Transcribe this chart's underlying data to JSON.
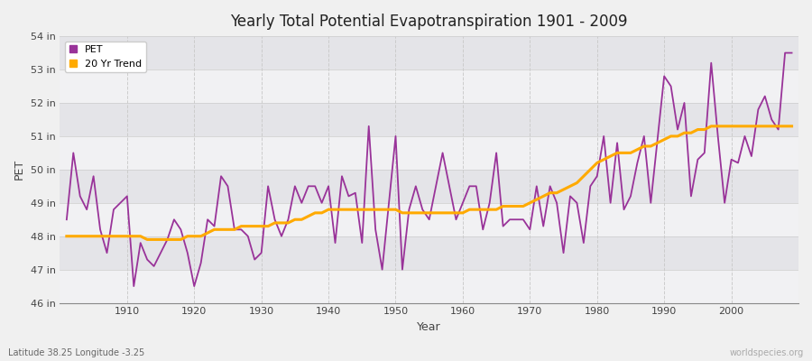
{
  "title": "Yearly Total Potential Evapotranspiration 1901 - 2009",
  "xlabel": "Year",
  "ylabel": "PET",
  "subtitle": "Latitude 38.25 Longitude -3.25",
  "watermark": "worldspecies.org",
  "pet_color": "#993399",
  "trend_color": "#ffaa00",
  "bg_color": "#f0f0f0",
  "plot_bg_color": "#e4e4e8",
  "ylim": [
    46,
    54
  ],
  "yticks": [
    46,
    47,
    48,
    49,
    50,
    51,
    52,
    53,
    54
  ],
  "ytick_labels": [
    "46 in",
    "47 in",
    "48 in",
    "49 in",
    "50 in",
    "51 in",
    "52 in",
    "53 in",
    "54 in"
  ],
  "years": [
    1901,
    1902,
    1903,
    1904,
    1905,
    1906,
    1907,
    1908,
    1909,
    1910,
    1911,
    1912,
    1913,
    1914,
    1915,
    1916,
    1917,
    1918,
    1919,
    1920,
    1921,
    1922,
    1923,
    1924,
    1925,
    1926,
    1927,
    1928,
    1929,
    1930,
    1931,
    1932,
    1933,
    1934,
    1935,
    1936,
    1937,
    1938,
    1939,
    1940,
    1941,
    1942,
    1943,
    1944,
    1945,
    1946,
    1947,
    1948,
    1949,
    1950,
    1951,
    1952,
    1953,
    1954,
    1955,
    1956,
    1957,
    1958,
    1959,
    1960,
    1961,
    1962,
    1963,
    1964,
    1965,
    1966,
    1967,
    1968,
    1969,
    1970,
    1971,
    1972,
    1973,
    1974,
    1975,
    1976,
    1977,
    1978,
    1979,
    1980,
    1981,
    1982,
    1983,
    1984,
    1985,
    1986,
    1987,
    1988,
    1989,
    1990,
    1991,
    1992,
    1993,
    1994,
    1995,
    1996,
    1997,
    1998,
    1999,
    2000,
    2001,
    2002,
    2003,
    2004,
    2005,
    2006,
    2007,
    2008,
    2009
  ],
  "pet": [
    48.5,
    50.5,
    49.2,
    48.8,
    49.8,
    48.2,
    47.5,
    48.8,
    49.0,
    49.2,
    46.5,
    47.8,
    47.3,
    47.1,
    47.5,
    47.9,
    48.5,
    48.2,
    47.5,
    46.5,
    47.2,
    48.5,
    48.3,
    49.8,
    49.5,
    48.2,
    48.2,
    48.0,
    47.3,
    47.5,
    49.5,
    48.5,
    48.0,
    48.5,
    49.5,
    49.0,
    49.5,
    49.5,
    49.0,
    49.5,
    47.8,
    49.8,
    49.2,
    49.3,
    47.8,
    51.3,
    48.2,
    47.0,
    49.0,
    51.0,
    47.0,
    48.8,
    49.5,
    48.8,
    48.5,
    49.5,
    50.5,
    49.5,
    48.5,
    49.0,
    49.5,
    49.5,
    48.2,
    49.0,
    50.5,
    48.3,
    48.5,
    48.5,
    48.5,
    48.2,
    49.5,
    48.3,
    49.5,
    49.0,
    47.5,
    49.2,
    49.0,
    47.8,
    49.5,
    49.8,
    51.0,
    49.0,
    50.8,
    48.8,
    49.2,
    50.2,
    51.0,
    49.0,
    50.9,
    52.8,
    52.5,
    51.2,
    52.0,
    49.2,
    50.3,
    50.5,
    53.2,
    51.0,
    49.0,
    50.3,
    50.2,
    51.0,
    50.4,
    51.8,
    52.2,
    51.5,
    51.2,
    53.5,
    53.5
  ],
  "trend": [
    48.0,
    48.0,
    48.0,
    48.0,
    48.0,
    48.0,
    48.0,
    48.0,
    48.0,
    48.0,
    48.0,
    48.0,
    47.9,
    47.9,
    47.9,
    47.9,
    47.9,
    47.9,
    48.0,
    48.0,
    48.0,
    48.1,
    48.2,
    48.2,
    48.2,
    48.2,
    48.3,
    48.3,
    48.3,
    48.3,
    48.3,
    48.4,
    48.4,
    48.4,
    48.5,
    48.5,
    48.6,
    48.7,
    48.7,
    48.8,
    48.8,
    48.8,
    48.8,
    48.8,
    48.8,
    48.8,
    48.8,
    48.8,
    48.8,
    48.8,
    48.7,
    48.7,
    48.7,
    48.7,
    48.7,
    48.7,
    48.7,
    48.7,
    48.7,
    48.7,
    48.8,
    48.8,
    48.8,
    48.8,
    48.8,
    48.9,
    48.9,
    48.9,
    48.9,
    49.0,
    49.1,
    49.2,
    49.3,
    49.3,
    49.4,
    49.5,
    49.6,
    49.8,
    50.0,
    50.2,
    50.3,
    50.4,
    50.5,
    50.5,
    50.5,
    50.6,
    50.7,
    50.7,
    50.8,
    50.9,
    51.0,
    51.0,
    51.1,
    51.1,
    51.2,
    51.2,
    51.3,
    51.3,
    51.3,
    51.3,
    51.3,
    51.3,
    51.3,
    51.3,
    51.3,
    51.3,
    51.3,
    51.3,
    51.3
  ]
}
